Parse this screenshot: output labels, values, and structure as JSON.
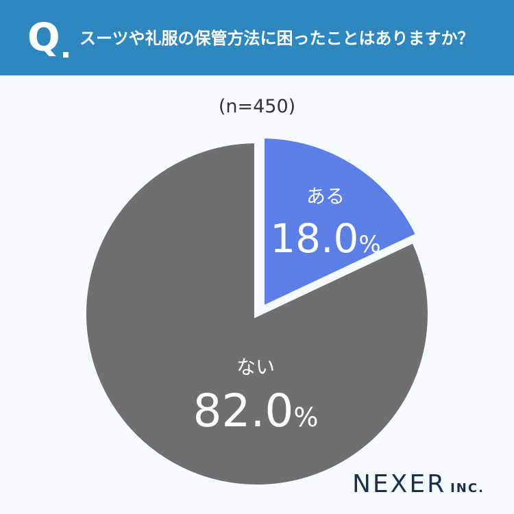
{
  "header": {
    "q_mark": "Q",
    "question": "スーツや礼服の保管方法に困ったことはありますか？"
  },
  "sample_size": "(n=450)",
  "chart_data": {
    "type": "pie",
    "title": "",
    "slices": [
      {
        "label": "ある",
        "value": 18.0,
        "display": "18.0",
        "unit": "%",
        "color": "#5b7fe6"
      },
      {
        "label": "ない",
        "value": 82.0,
        "display": "82.0",
        "unit": "%",
        "color": "#6f6f6f"
      }
    ],
    "start_angle_deg": 0,
    "direction": "clockwise",
    "separator_color": "#f6fcfd"
  },
  "brand": {
    "name": "NEXER",
    "suffix": "INC."
  }
}
